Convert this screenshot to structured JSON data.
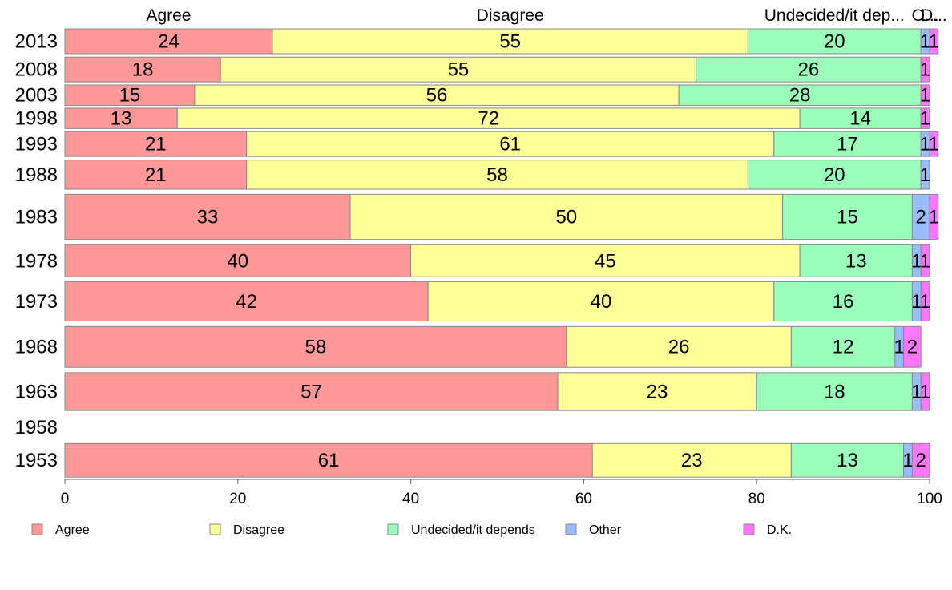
{
  "chart_data": {
    "type": "bar",
    "orientation": "horizontal",
    "stacked": true,
    "xlim": [
      0,
      100
    ],
    "xticks": [
      0,
      20,
      40,
      60,
      80,
      100
    ],
    "grid": false,
    "legend_position": "bottom",
    "column_headers": [
      "Agree",
      "Disagree",
      "Undecided/it dep...",
      "O...",
      "D..."
    ],
    "series": [
      {
        "name": "Agree",
        "color": "#ff9999"
      },
      {
        "name": "Disagree",
        "color": "#ffff99"
      },
      {
        "name": "Undecided/it depends",
        "color": "#99ffbb"
      },
      {
        "name": "Other",
        "color": "#99bbff"
      },
      {
        "name": "D.K.",
        "color": "#ff77ff"
      }
    ],
    "rows": [
      {
        "year": "2013",
        "values": [
          24,
          55,
          20,
          1,
          1
        ],
        "weight": 0.85
      },
      {
        "year": "2008",
        "values": [
          18,
          55,
          26,
          0,
          1
        ],
        "weight": 0.85
      },
      {
        "year": "2003",
        "values": [
          15,
          56,
          28,
          0,
          1
        ],
        "weight": 0.7
      },
      {
        "year": "1998",
        "values": [
          13,
          72,
          14,
          0,
          1
        ],
        "weight": 0.7
      },
      {
        "year": "1993",
        "values": [
          21,
          61,
          17,
          1,
          1
        ],
        "weight": 0.85
      },
      {
        "year": "1988",
        "values": [
          21,
          58,
          20,
          1,
          0
        ],
        "weight": 1.0
      },
      {
        "year": "1983",
        "values": [
          33,
          50,
          15,
          2,
          1
        ],
        "weight": 1.55
      },
      {
        "year": "1978",
        "values": [
          40,
          45,
          13,
          1,
          1
        ],
        "weight": 1.1
      },
      {
        "year": "1973",
        "values": [
          42,
          40,
          16,
          1,
          1
        ],
        "weight": 1.35
      },
      {
        "year": "1968",
        "values": [
          58,
          26,
          12,
          1,
          2
        ],
        "weight": 1.4
      },
      {
        "year": "1963",
        "values": [
          57,
          23,
          18,
          1,
          1
        ],
        "weight": 1.3
      },
      {
        "year": "1958",
        "values": [],
        "weight": 0.85
      },
      {
        "year": "1953",
        "values": [
          61,
          23,
          13,
          1,
          2
        ],
        "weight": 1.15
      }
    ]
  }
}
